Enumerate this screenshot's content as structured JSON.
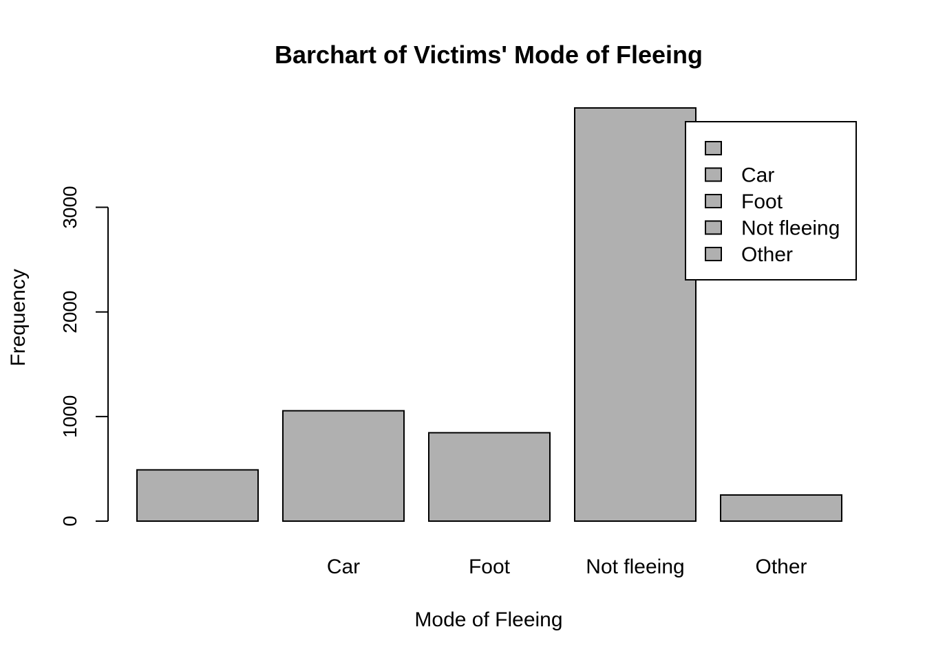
{
  "chart_data": {
    "type": "bar",
    "title": "Barchart of Victims' Mode of Fleeing",
    "xlabel": "Mode of Fleeing",
    "ylabel": "Frequency",
    "categories": [
      "",
      "Car",
      "Foot",
      "Not fleeing",
      "Other"
    ],
    "values": [
      490,
      1055,
      845,
      3950,
      250
    ],
    "ylim": [
      0,
      3950
    ],
    "yticks": [
      0,
      1000,
      2000,
      3000
    ],
    "bar_color": "#b0b0b0",
    "grid": false,
    "legend": {
      "position": "top-right",
      "entries": [
        "",
        "Car",
        "Foot",
        "Not fleeing",
        "Other"
      ]
    }
  }
}
